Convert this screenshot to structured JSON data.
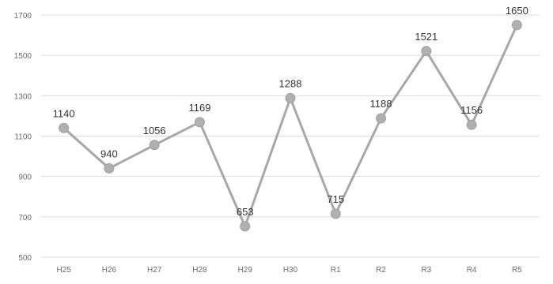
{
  "chart_data": {
    "type": "line",
    "categories": [
      "H25",
      "H26",
      "H27",
      "H28",
      "H29",
      "H30",
      "R1",
      "R2",
      "R3",
      "R4",
      "R5"
    ],
    "series": [
      {
        "values": [
          1140,
          940,
          1056,
          1169,
          653,
          1288,
          715,
          1188,
          1521,
          1156,
          1650
        ]
      }
    ],
    "data_labels": [
      "1140",
      "940",
      "1056",
      "1169",
      "653",
      "1288",
      "715",
      "1188",
      "1521",
      "1156",
      "1650"
    ],
    "ylim": [
      500,
      1700
    ],
    "yticks": [
      500,
      700,
      900,
      1100,
      1300,
      1500,
      1700
    ],
    "grid": true,
    "legend": "none",
    "colors": {
      "line": "#a8a8a8",
      "point": "#b0b0b0",
      "grid": "#dcdcdc"
    }
  }
}
